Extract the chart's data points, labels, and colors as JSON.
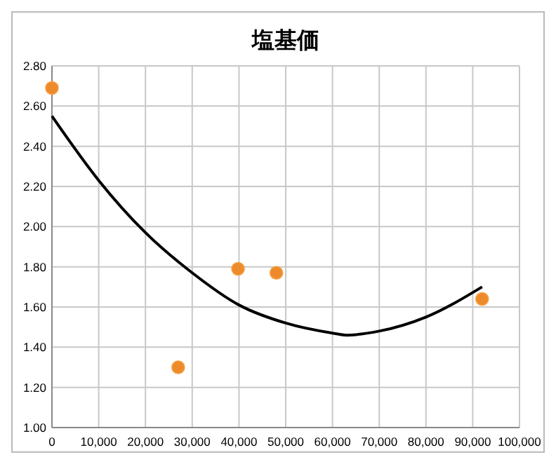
{
  "chart_data": {
    "type": "scatter",
    "title": "塩基価",
    "xlim": [
      0,
      100000
    ],
    "ylim": [
      1,
      2.8
    ],
    "xticks": [
      0,
      {
        "value": 10000,
        "label": "10,000"
      },
      {
        "value": 20000,
        "label": "20,000"
      },
      {
        "value": 30000,
        "label": "30,000"
      },
      {
        "value": 40000,
        "label": "40,000"
      },
      {
        "value": 50000,
        "label": "50,000"
      },
      {
        "value": 60000,
        "label": "60,000"
      },
      {
        "value": 70000,
        "label": "70,000"
      },
      {
        "value": 80000,
        "label": "80,000"
      },
      {
        "value": 90000,
        "label": "90,000"
      },
      {
        "value": 100000,
        "label": "100,000"
      }
    ],
    "yticks": [
      {
        "value": 1,
        "label": "1.00"
      },
      {
        "value": 1.2,
        "label": "1.20"
      },
      {
        "value": 1.4,
        "label": "1.40"
      },
      {
        "value": 1.6,
        "label": "1.60"
      },
      {
        "value": 1.8,
        "label": "1.80"
      },
      {
        "value": 2,
        "label": "2.00"
      },
      {
        "value": 2.2,
        "label": "2.20"
      },
      {
        "value": 2.4,
        "label": "2.40"
      },
      {
        "value": 2.6,
        "label": "2.60"
      },
      {
        "value": 2.8,
        "label": "2.80"
      }
    ],
    "grid": true,
    "marker": "circle",
    "series": [
      {
        "color": "#ed8b2c",
        "x": [
          0,
          27000,
          39800,
          48000,
          92000
        ],
        "values": [
          2.69,
          1.3,
          1.79,
          1.77,
          1.64
        ]
      },
      {
        "type": "line",
        "color": "#000000",
        "line_style": "solid",
        "marker": "none",
        "x": [
          0,
          10000,
          20000,
          30000,
          40000,
          50000,
          60000,
          63000,
          70000,
          80000,
          92000
        ],
        "values": [
          2.55,
          2.23,
          1.97,
          1.77,
          1.61,
          1.52,
          1.47,
          1.46,
          1.48,
          1.55,
          1.7
        ]
      }
    ]
  }
}
